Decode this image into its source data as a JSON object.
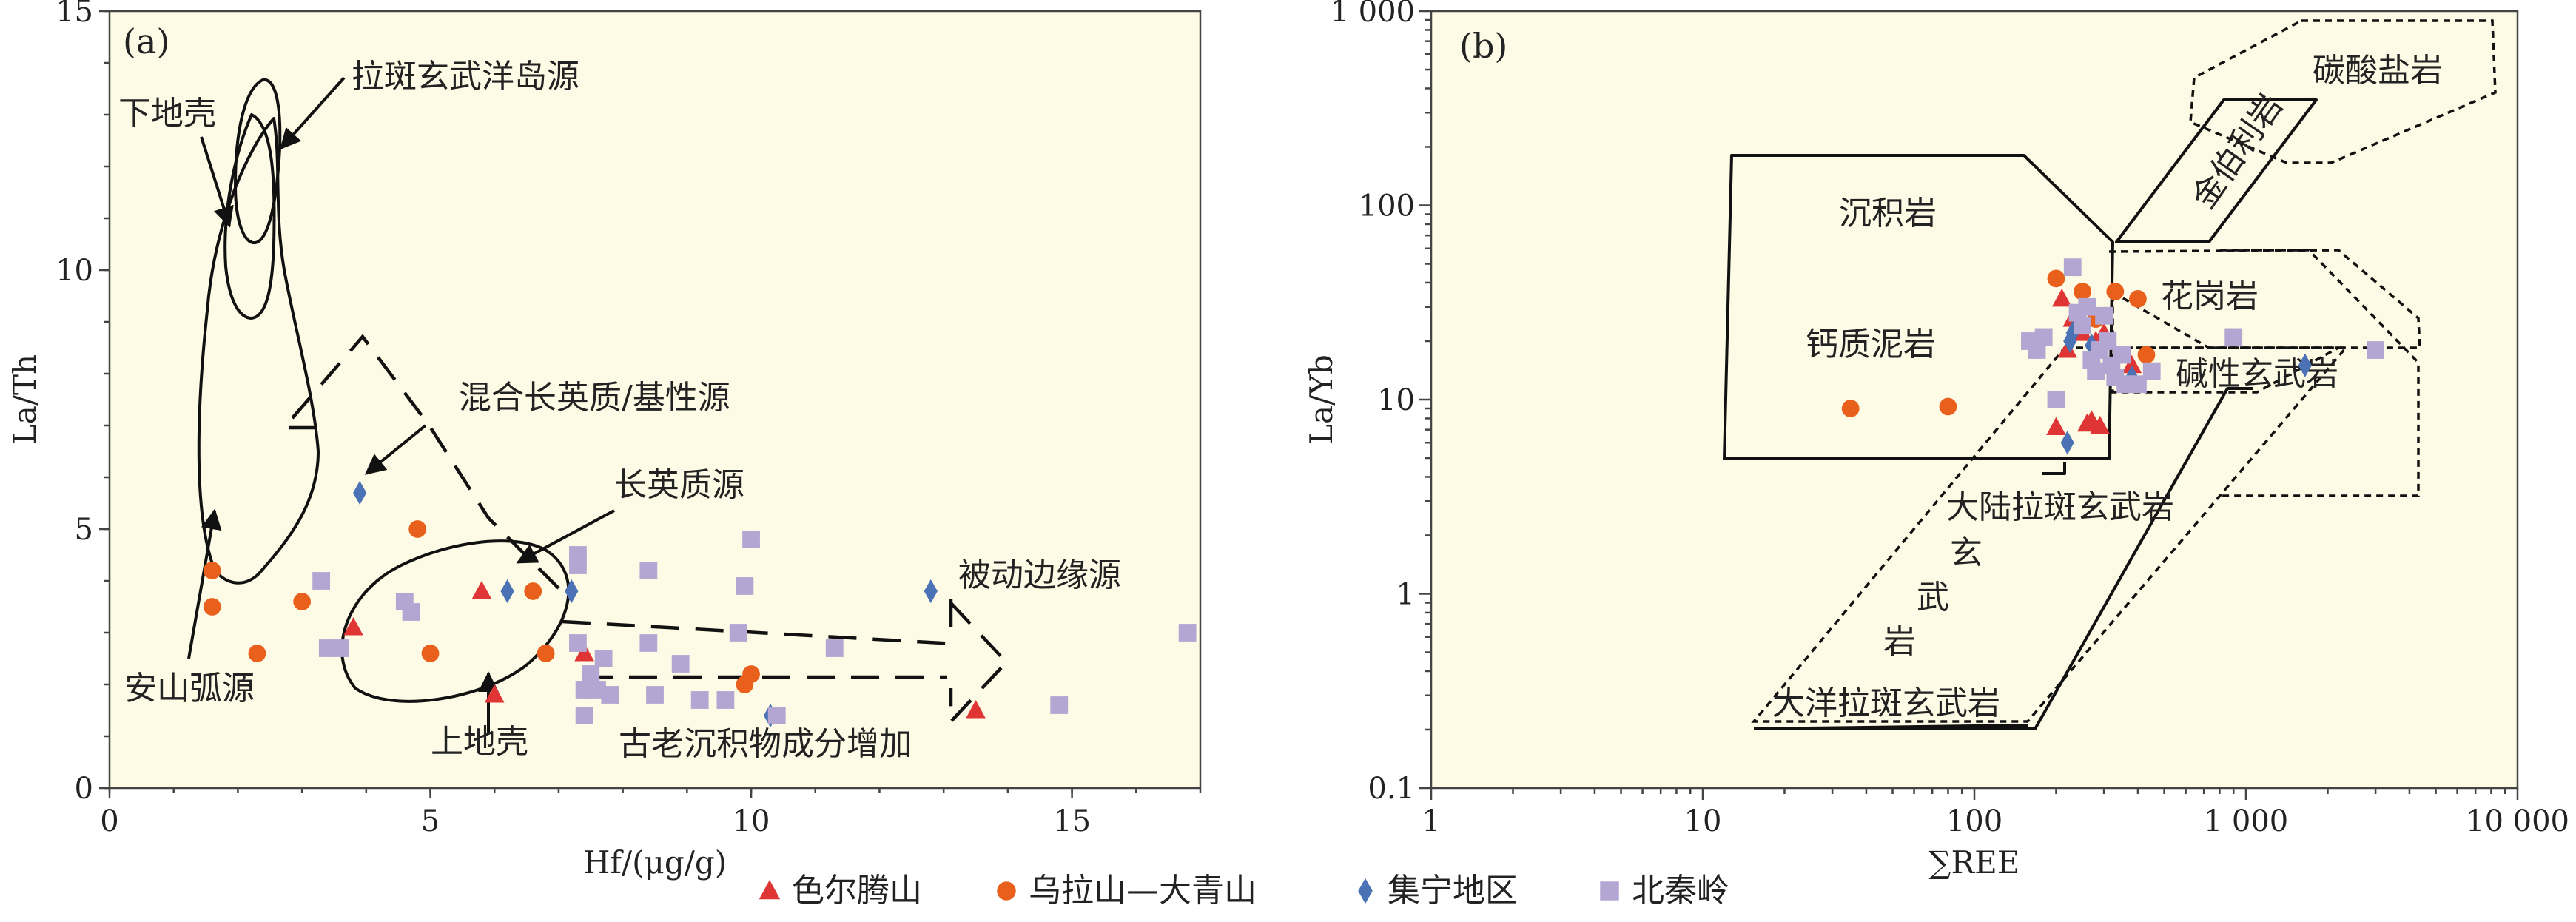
{
  "colors": {
    "series_0": "#e03535",
    "series_1": "#e8601c",
    "series_2": "#4a72b5",
    "series_3": "#b4a6d2",
    "plot_bg": "#fdfbe5"
  },
  "legend": {
    "placement": "bottom-center",
    "items": [
      "色尔腾山",
      "乌拉山—大青山",
      "集宁地区",
      "北秦岭"
    ],
    "markers": [
      "triangle",
      "circle",
      "diamond",
      "square"
    ]
  },
  "chart_data": [
    {
      "type": "scatter",
      "panel_label": "(a)",
      "xlabel": "Hf/(μg/g)",
      "ylabel": "La/Th",
      "xlim": [
        0,
        17
      ],
      "ylim": [
        0,
        15
      ],
      "xticks": [
        "0",
        "5",
        "10",
        "15"
      ],
      "yticks": [
        "0",
        "5",
        "10",
        "15"
      ],
      "grid": false,
      "annotations": [
        "拉斑玄武洋岛源",
        "下地壳",
        "混合长英质/基性源",
        "长英质源",
        "被动边缘源",
        "安山弧源",
        "上地壳",
        "古老沉积物成分增加"
      ],
      "series": [
        {
          "name": "色尔腾山",
          "points": [
            [
              3.8,
              3.1
            ],
            [
              5.8,
              3.8
            ],
            [
              6.0,
              1.8
            ],
            [
              7.4,
              2.6
            ],
            [
              13.5,
              1.5
            ]
          ]
        },
        {
          "name": "乌拉山—大青山",
          "points": [
            [
              1.6,
              4.2
            ],
            [
              1.6,
              3.5
            ],
            [
              2.3,
              2.6
            ],
            [
              3.0,
              3.6
            ],
            [
              4.8,
              5.0
            ],
            [
              5.0,
              2.6
            ],
            [
              6.6,
              3.8
            ],
            [
              6.8,
              2.6
            ],
            [
              9.9,
              2.0
            ],
            [
              10.0,
              2.2
            ]
          ]
        },
        {
          "name": "集宁地区",
          "points": [
            [
              3.9,
              5.7
            ],
            [
              6.2,
              3.8
            ],
            [
              7.2,
              3.8
            ],
            [
              10.3,
              1.4
            ],
            [
              12.8,
              3.8
            ]
          ]
        },
        {
          "name": "北秦岭",
          "points": [
            [
              3.3,
              4.0
            ],
            [
              3.4,
              2.7
            ],
            [
              3.6,
              2.7
            ],
            [
              4.6,
              3.6
            ],
            [
              4.7,
              3.4
            ],
            [
              7.3,
              4.3
            ],
            [
              7.3,
              4.5
            ],
            [
              7.3,
              2.8
            ],
            [
              7.4,
              1.4
            ],
            [
              7.4,
              1.9
            ],
            [
              7.5,
              2.2
            ],
            [
              7.6,
              1.9
            ],
            [
              7.7,
              2.5
            ],
            [
              7.8,
              1.8
            ],
            [
              8.4,
              4.2
            ],
            [
              8.4,
              2.8
            ],
            [
              8.5,
              1.8
            ],
            [
              8.9,
              2.4
            ],
            [
              9.2,
              1.7
            ],
            [
              9.6,
              1.7
            ],
            [
              9.8,
              3.0
            ],
            [
              9.9,
              3.9
            ],
            [
              10.0,
              4.8
            ],
            [
              10.4,
              1.4
            ],
            [
              11.3,
              2.7
            ],
            [
              14.8,
              1.6
            ],
            [
              16.8,
              3.0
            ]
          ]
        }
      ]
    },
    {
      "type": "scatter",
      "panel_label": "(b)",
      "xlabel": "∑REE",
      "ylabel": "La/Yb",
      "xscale": "log",
      "yscale": "log",
      "xlim": [
        1,
        10000
      ],
      "ylim": [
        0.1,
        1000
      ],
      "xticks": [
        "1",
        "10",
        "100",
        "1 000",
        "10 000"
      ],
      "yticks": [
        "0.1",
        "1",
        "10",
        "100",
        "1 000"
      ],
      "grid": false,
      "annotations": [
        "碳酸盐岩",
        "金伯利岩",
        "沉积岩",
        "花岗岩",
        "钙质泥岩",
        "碱性玄武岩",
        "大陆拉斑玄武岩",
        "玄",
        "武",
        "岩",
        "大洋拉斑玄武岩"
      ],
      "series": [
        {
          "name": "色尔腾山",
          "points": [
            [
              200,
              7.2
            ],
            [
              210,
              33
            ],
            [
              220,
              18
            ],
            [
              230,
              26
            ],
            [
              250,
              22
            ],
            [
              260,
              7.5
            ],
            [
              270,
              7.8
            ],
            [
              280,
              20
            ],
            [
              290,
              7.3
            ],
            [
              300,
              22
            ],
            [
              380,
              15
            ]
          ]
        },
        {
          "name": "乌拉山—大青山",
          "points": [
            [
              35,
              9
            ],
            [
              80,
              9.2
            ],
            [
              200,
              42
            ],
            [
              250,
              36
            ],
            [
              280,
              26
            ],
            [
              330,
              36
            ],
            [
              400,
              33
            ],
            [
              430,
              17
            ]
          ]
        },
        {
          "name": "集宁地区",
          "points": [
            [
              220,
              6
            ],
            [
              225,
              20
            ],
            [
              230,
              22
            ],
            [
              270,
              19
            ],
            [
              380,
              13
            ],
            [
              1650,
              15
            ]
          ]
        },
        {
          "name": "北秦岭",
          "points": [
            [
              160,
              20
            ],
            [
              170,
              18
            ],
            [
              180,
              21
            ],
            [
              200,
              10
            ],
            [
              230,
              48
            ],
            [
              240,
              28
            ],
            [
              250,
              24
            ],
            [
              260,
              30
            ],
            [
              270,
              16
            ],
            [
              280,
              14
            ],
            [
              290,
              18
            ],
            [
              300,
              27
            ],
            [
              310,
              20
            ],
            [
              320,
              15
            ],
            [
              330,
              13
            ],
            [
              350,
              17
            ],
            [
              360,
              12
            ],
            [
              400,
              12
            ],
            [
              450,
              14
            ],
            [
              900,
              21
            ],
            [
              3000,
              18
            ]
          ]
        }
      ]
    }
  ]
}
